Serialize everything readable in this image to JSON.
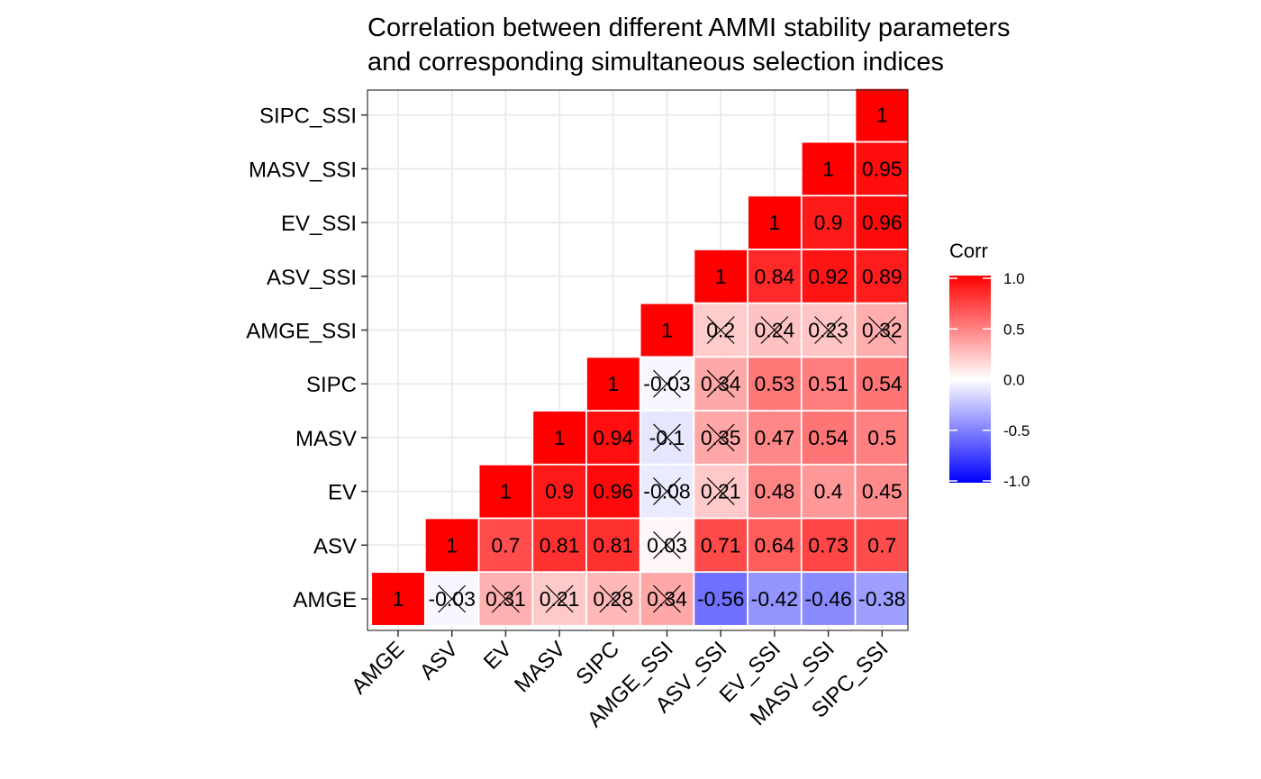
{
  "chart_data": {
    "type": "heatmap",
    "title_lines": [
      "Correlation between different AMMI stability parameters",
      "and corresponding simultaneous selection indices"
    ],
    "variables": [
      "AMGE",
      "ASV",
      "EV",
      "MASV",
      "SIPC",
      "AMGE_SSI",
      "ASV_SSI",
      "EV_SSI",
      "MASV_SSI",
      "SIPC_SSI"
    ],
    "cells": [
      {
        "x": "AMGE",
        "y": "AMGE",
        "value": 1,
        "label": "1",
        "crossed": false
      },
      {
        "x": "ASV",
        "y": "AMGE",
        "value": -0.03,
        "label": "-0.03",
        "crossed": true
      },
      {
        "x": "ASV",
        "y": "ASV",
        "value": 1,
        "label": "1",
        "crossed": false
      },
      {
        "x": "EV",
        "y": "AMGE",
        "value": 0.31,
        "label": "0.31",
        "crossed": true
      },
      {
        "x": "EV",
        "y": "ASV",
        "value": 0.7,
        "label": "0.7",
        "crossed": false
      },
      {
        "x": "EV",
        "y": "EV",
        "value": 1,
        "label": "1",
        "crossed": false
      },
      {
        "x": "MASV",
        "y": "AMGE",
        "value": 0.21,
        "label": "0.21",
        "crossed": true
      },
      {
        "x": "MASV",
        "y": "ASV",
        "value": 0.81,
        "label": "0.81",
        "crossed": false
      },
      {
        "x": "MASV",
        "y": "EV",
        "value": 0.9,
        "label": "0.9",
        "crossed": false
      },
      {
        "x": "MASV",
        "y": "MASV",
        "value": 1,
        "label": "1",
        "crossed": false
      },
      {
        "x": "SIPC",
        "y": "AMGE",
        "value": 0.28,
        "label": "0.28",
        "crossed": true
      },
      {
        "x": "SIPC",
        "y": "ASV",
        "value": 0.81,
        "label": "0.81",
        "crossed": false
      },
      {
        "x": "SIPC",
        "y": "EV",
        "value": 0.96,
        "label": "0.96",
        "crossed": false
      },
      {
        "x": "SIPC",
        "y": "MASV",
        "value": 0.94,
        "label": "0.94",
        "crossed": false
      },
      {
        "x": "SIPC",
        "y": "SIPC",
        "value": 1,
        "label": "1",
        "crossed": false
      },
      {
        "x": "AMGE_SSI",
        "y": "AMGE",
        "value": 0.34,
        "label": "0.34",
        "crossed": true
      },
      {
        "x": "AMGE_SSI",
        "y": "ASV",
        "value": 0.03,
        "label": "0.03",
        "crossed": true
      },
      {
        "x": "AMGE_SSI",
        "y": "EV",
        "value": -0.08,
        "label": "-0.08",
        "crossed": true
      },
      {
        "x": "AMGE_SSI",
        "y": "MASV",
        "value": -0.1,
        "label": "-0.1",
        "crossed": true
      },
      {
        "x": "AMGE_SSI",
        "y": "SIPC",
        "value": -0.03,
        "label": "-0.03",
        "crossed": true
      },
      {
        "x": "AMGE_SSI",
        "y": "AMGE_SSI",
        "value": 1,
        "label": "1",
        "crossed": false
      },
      {
        "x": "ASV_SSI",
        "y": "AMGE",
        "value": -0.56,
        "label": "-0.56",
        "crossed": false
      },
      {
        "x": "ASV_SSI",
        "y": "ASV",
        "value": 0.71,
        "label": "0.71",
        "crossed": false
      },
      {
        "x": "ASV_SSI",
        "y": "EV",
        "value": 0.21,
        "label": "0.21",
        "crossed": true
      },
      {
        "x": "ASV_SSI",
        "y": "MASV",
        "value": 0.35,
        "label": "0.35",
        "crossed": true
      },
      {
        "x": "ASV_SSI",
        "y": "SIPC",
        "value": 0.34,
        "label": "0.34",
        "crossed": true
      },
      {
        "x": "ASV_SSI",
        "y": "AMGE_SSI",
        "value": 0.2,
        "label": "0.2",
        "crossed": true
      },
      {
        "x": "ASV_SSI",
        "y": "ASV_SSI",
        "value": 1,
        "label": "1",
        "crossed": false
      },
      {
        "x": "EV_SSI",
        "y": "AMGE",
        "value": -0.42,
        "label": "-0.42",
        "crossed": false
      },
      {
        "x": "EV_SSI",
        "y": "ASV",
        "value": 0.64,
        "label": "0.64",
        "crossed": false
      },
      {
        "x": "EV_SSI",
        "y": "EV",
        "value": 0.48,
        "label": "0.48",
        "crossed": false
      },
      {
        "x": "EV_SSI",
        "y": "MASV",
        "value": 0.47,
        "label": "0.47",
        "crossed": false
      },
      {
        "x": "EV_SSI",
        "y": "SIPC",
        "value": 0.53,
        "label": "0.53",
        "crossed": false
      },
      {
        "x": "EV_SSI",
        "y": "AMGE_SSI",
        "value": 0.24,
        "label": "0.24",
        "crossed": true
      },
      {
        "x": "EV_SSI",
        "y": "ASV_SSI",
        "value": 0.84,
        "label": "0.84",
        "crossed": false
      },
      {
        "x": "EV_SSI",
        "y": "EV_SSI",
        "value": 1,
        "label": "1",
        "crossed": false
      },
      {
        "x": "MASV_SSI",
        "y": "AMGE",
        "value": -0.46,
        "label": "-0.46",
        "crossed": false
      },
      {
        "x": "MASV_SSI",
        "y": "ASV",
        "value": 0.73,
        "label": "0.73",
        "crossed": false
      },
      {
        "x": "MASV_SSI",
        "y": "EV",
        "value": 0.4,
        "label": "0.4",
        "crossed": false
      },
      {
        "x": "MASV_SSI",
        "y": "MASV",
        "value": 0.54,
        "label": "0.54",
        "crossed": false
      },
      {
        "x": "MASV_SSI",
        "y": "SIPC",
        "value": 0.51,
        "label": "0.51",
        "crossed": false
      },
      {
        "x": "MASV_SSI",
        "y": "AMGE_SSI",
        "value": 0.23,
        "label": "0.23",
        "crossed": true
      },
      {
        "x": "MASV_SSI",
        "y": "ASV_SSI",
        "value": 0.92,
        "label": "0.92",
        "crossed": false
      },
      {
        "x": "MASV_SSI",
        "y": "EV_SSI",
        "value": 0.9,
        "label": "0.9",
        "crossed": false
      },
      {
        "x": "MASV_SSI",
        "y": "MASV_SSI",
        "value": 1,
        "label": "1",
        "crossed": false
      },
      {
        "x": "SIPC_SSI",
        "y": "AMGE",
        "value": -0.38,
        "label": "-0.38",
        "crossed": false
      },
      {
        "x": "SIPC_SSI",
        "y": "ASV",
        "value": 0.7,
        "label": "0.7",
        "crossed": false
      },
      {
        "x": "SIPC_SSI",
        "y": "EV",
        "value": 0.45,
        "label": "0.45",
        "crossed": false
      },
      {
        "x": "SIPC_SSI",
        "y": "MASV",
        "value": 0.5,
        "label": "0.5",
        "crossed": false
      },
      {
        "x": "SIPC_SSI",
        "y": "SIPC",
        "value": 0.54,
        "label": "0.54",
        "crossed": false
      },
      {
        "x": "SIPC_SSI",
        "y": "AMGE_SSI",
        "value": 0.32,
        "label": "0.32",
        "crossed": true
      },
      {
        "x": "SIPC_SSI",
        "y": "ASV_SSI",
        "value": 0.89,
        "label": "0.89",
        "crossed": false
      },
      {
        "x": "SIPC_SSI",
        "y": "EV_SSI",
        "value": 0.96,
        "label": "0.96",
        "crossed": false
      },
      {
        "x": "SIPC_SSI",
        "y": "MASV_SSI",
        "value": 0.95,
        "label": "0.95",
        "crossed": false
      },
      {
        "x": "SIPC_SSI",
        "y": "SIPC_SSI",
        "value": 1,
        "label": "1",
        "crossed": false
      }
    ],
    "legend": {
      "title": "Corr",
      "breaks": [
        1.0,
        0.5,
        0.0,
        -0.5,
        -1.0
      ],
      "break_labels": [
        "1.0",
        "0.5",
        "0.0",
        "-0.5",
        "-1.0"
      ],
      "limits": [
        -1,
        1
      ],
      "colors": {
        "low": "#0000FF",
        "mid": "#FFFFFF",
        "high": "#FF0000"
      },
      "position": "right"
    },
    "grid": true,
    "xlabel": "",
    "ylabel": ""
  }
}
